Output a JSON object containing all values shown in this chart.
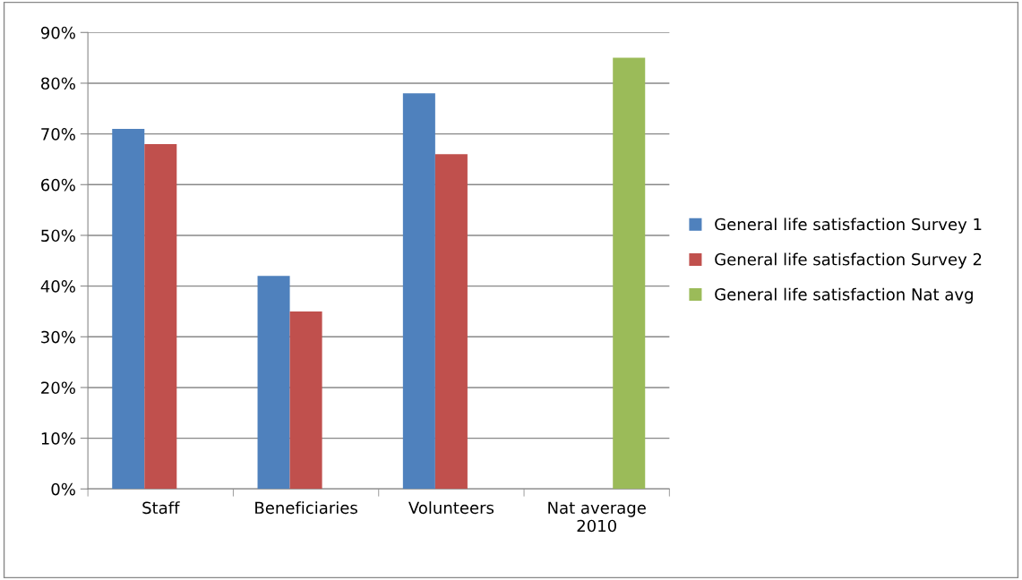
{
  "chart_data": {
    "type": "bar",
    "categories": [
      "Staff",
      "Beneficiaries",
      "Volunteers",
      "Nat average\n2010"
    ],
    "series": [
      {
        "name": "General life satisfaction Survey 1",
        "color": "#4f81bd",
        "values": [
          71,
          42,
          78,
          null
        ]
      },
      {
        "name": "General life satisfaction Survey 2",
        "color": "#c0504d",
        "values": [
          68,
          35,
          66,
          null
        ]
      },
      {
        "name": "General life satisfaction Nat avg",
        "color": "#9bbb59",
        "values": [
          null,
          null,
          null,
          85
        ]
      }
    ],
    "ylim": [
      0,
      90
    ],
    "yticks": [
      {
        "value": 0,
        "label": "0%"
      },
      {
        "value": 10,
        "label": "10%"
      },
      {
        "value": 20,
        "label": "20%"
      },
      {
        "value": 30,
        "label": "30%"
      },
      {
        "value": 40,
        "label": "40%"
      },
      {
        "value": 50,
        "label": "50%"
      },
      {
        "value": 60,
        "label": "60%"
      },
      {
        "value": 70,
        "label": "70%"
      },
      {
        "value": 80,
        "label": "80%"
      },
      {
        "value": 90,
        "label": "90%"
      }
    ],
    "grid": "y",
    "legend": "right"
  }
}
